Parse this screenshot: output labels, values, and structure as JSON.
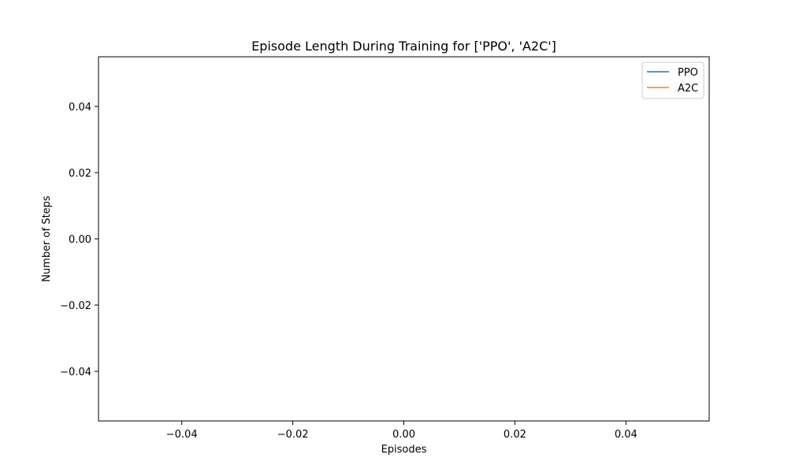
{
  "chart_data": {
    "type": "line",
    "title": "Episode Length During Training for ['PPO', 'A2C']",
    "xlabel": "Episodes",
    "ylabel": "Number of Steps",
    "xlim": [
      -0.055,
      0.055
    ],
    "ylim": [
      -0.055,
      0.055
    ],
    "xticks": [
      -0.04,
      -0.02,
      0.0,
      0.02,
      0.04
    ],
    "xtick_labels": [
      "−0.04",
      "−0.02",
      "0.00",
      "0.02",
      "0.04"
    ],
    "yticks": [
      0.04,
      0.02,
      0.0,
      -0.02,
      -0.04
    ],
    "ytick_labels": [
      "0.04",
      "0.02",
      "0.00",
      "−0.02",
      "−0.04"
    ],
    "grid": false,
    "legend_position": "top-right",
    "series": [
      {
        "name": "PPO",
        "color": "#1f77b4",
        "x": [],
        "y": []
      },
      {
        "name": "A2C",
        "color": "#ff7f0e",
        "x": [],
        "y": []
      }
    ]
  }
}
